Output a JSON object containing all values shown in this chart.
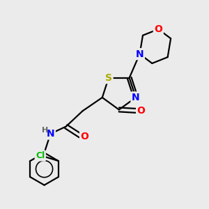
{
  "bg_color": "#ebebeb",
  "bond_color": "#000000",
  "atoms": {
    "S": {
      "color": "#aaaa00",
      "fontsize": 10
    },
    "N": {
      "color": "#0000ff",
      "fontsize": 10
    },
    "O": {
      "color": "#ff0000",
      "fontsize": 10
    },
    "Cl": {
      "color": "#00bb00",
      "fontsize": 9
    },
    "H": {
      "color": "#666666",
      "fontsize": 9
    }
  },
  "line_width": 1.6,
  "figsize": [
    3.0,
    3.0
  ],
  "dpi": 100
}
